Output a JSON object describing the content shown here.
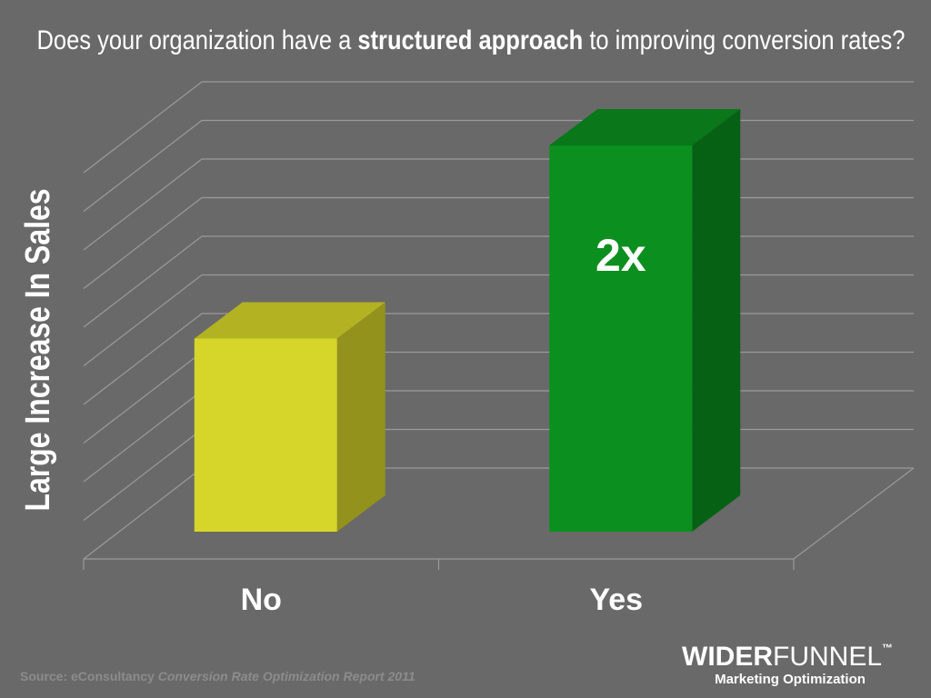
{
  "chart_data": {
    "type": "bar3d",
    "title": {
      "before": "Does your organization have a ",
      "bold": "structured approach",
      "after": " to improving conversion rates?"
    },
    "y_label": "Large Increase In Sales",
    "categories": [
      "No",
      "Yes"
    ],
    "values": [
      1,
      2
    ],
    "value_labels": [
      null,
      "2x"
    ],
    "colors": [
      "#d6d62a",
      "#0b8f1f"
    ],
    "ylim": [
      0,
      2
    ],
    "grid": true,
    "source": {
      "prefix": "Source: eConsultancy ",
      "report": "Conversion Rate Optimization Report 2011"
    },
    "logo": {
      "name_left": "WIDER",
      "name_right": "FUNNEL",
      "tm": "™",
      "tagline": "Marketing Optimization"
    }
  }
}
